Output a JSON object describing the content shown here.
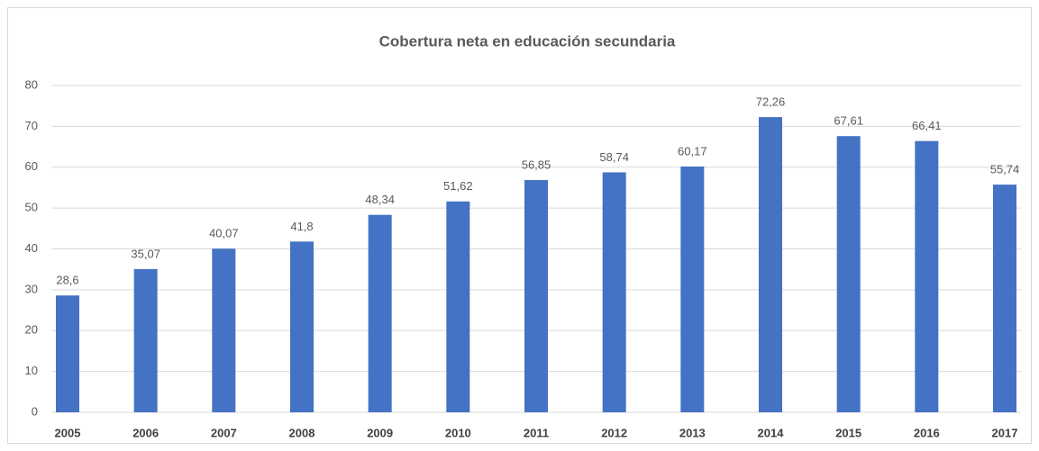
{
  "chart_data": {
    "type": "bar",
    "title": "Cobertura neta en educación secundaria",
    "categories": [
      "2005",
      "2006",
      "2007",
      "2008",
      "2009",
      "2010",
      "2011",
      "2012",
      "2013",
      "2014",
      "2015",
      "2016",
      "2017"
    ],
    "values": [
      28.6,
      35.07,
      40.07,
      41.8,
      48.34,
      51.62,
      56.85,
      58.74,
      60.17,
      72.26,
      67.61,
      66.41,
      55.74
    ],
    "value_labels": [
      "28,6",
      "35,07",
      "40,07",
      "41,8",
      "48,34",
      "51,62",
      "56,85",
      "58,74",
      "60,17",
      "72,26",
      "67,61",
      "66,41",
      "55,74"
    ],
    "color": "#4472c4",
    "ylim": [
      0,
      80
    ],
    "yticks": [
      0,
      10,
      20,
      30,
      40,
      50,
      60,
      70,
      80
    ],
    "grid": true
  }
}
